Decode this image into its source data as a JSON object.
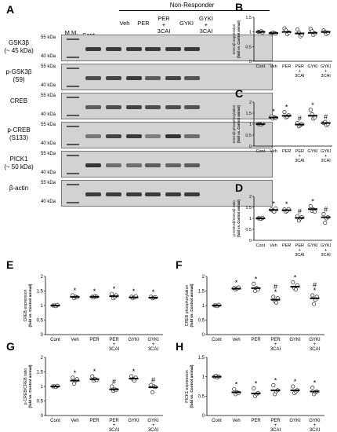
{
  "panelA": {
    "letter": "A",
    "group_header": "Non-Responder",
    "lanes": [
      "M.M.",
      "Cont",
      "Veh",
      "PER",
      "PER\n+\n3CAI",
      "GYKI",
      "GYKI\n+\n3CAI"
    ],
    "lane_lines": {
      "mm": "M.M.",
      "cont": "Cont",
      "veh": "Veh",
      "per": "PER",
      "per3cai_1": "PER",
      "per3cai_2": "+",
      "per3cai_3": "3CAI",
      "gyki": "GYKI",
      "gyki3cai_1": "GYKI",
      "gyki3cai_2": "+",
      "gyki3cai_3": "3CAI"
    },
    "blots": [
      {
        "label_1": "GSK3β",
        "label_2": "(~ 45 kDa)",
        "upper": "55 kDa",
        "lower": "40 kDa",
        "intensity": [
          0.9,
          0.9,
          0.9,
          0.9,
          0.9,
          0.9
        ]
      },
      {
        "label_1": "p-GSK3β",
        "label_2": "(S9)",
        "upper": "55 kDa",
        "lower": "40 kDa",
        "intensity": [
          0.8,
          0.85,
          0.9,
          0.7,
          0.85,
          0.75
        ]
      },
      {
        "label_1": "CREB",
        "label_2": "",
        "upper": "55 kDa",
        "lower": "40 kDa",
        "intensity": [
          0.7,
          0.8,
          0.85,
          0.8,
          0.8,
          0.75
        ]
      },
      {
        "label_1": "p-CREB",
        "label_2": "(S133)",
        "upper": "55 kDa",
        "lower": "40 kDa",
        "intensity": [
          0.55,
          0.85,
          0.9,
          0.5,
          0.95,
          0.6
        ]
      },
      {
        "label_1": "PICK1",
        "label_2": "(~ 50 kDa)",
        "upper": "55 kDa",
        "lower": "40 kDa",
        "intensity": [
          0.95,
          0.6,
          0.6,
          0.7,
          0.65,
          0.7
        ]
      },
      {
        "label_1": "β-actin",
        "label_2": "",
        "upper": "55 kDa",
        "lower": "40 kDa",
        "intensity": [
          0.9,
          0.9,
          0.9,
          0.9,
          0.9,
          0.9
        ]
      }
    ]
  },
  "chart_data": [
    {
      "letter": "B",
      "type": "scatter",
      "ylabel_1": "GSK3β expression",
      "ylabel_2": "(fold vs. Control animal)",
      "ylim": [
        0,
        1.5
      ],
      "yticks": [
        0,
        0.5,
        1,
        1.5
      ],
      "categories": [
        "Cont",
        "Veh",
        "PER",
        "PER\n+\n3CAI",
        "GYKI",
        "GYKI\n+\n3CAI"
      ],
      "means": [
        1.0,
        0.96,
        1.0,
        0.95,
        0.97,
        1.0
      ],
      "points": [
        [
          1.0,
          1.0,
          1.02,
          0.98
        ],
        [
          0.95,
          0.97,
          0.96,
          0.94
        ],
        [
          1.12,
          1.05,
          0.92,
          0.98
        ],
        [
          1.08,
          0.97,
          0.85,
          0.9
        ],
        [
          1.1,
          1.02,
          0.9,
          0.95
        ],
        [
          1.05,
          1.0,
          0.92,
          0.97
        ]
      ],
      "marks": [
        "",
        "",
        "",
        "",
        "",
        ""
      ]
    },
    {
      "letter": "C",
      "type": "scatter",
      "ylabel_1": "GSK3β phosphorylation",
      "ylabel_2": "(fold vs. Control animal)",
      "ylim": [
        0,
        2
      ],
      "yticks": [
        0,
        0.5,
        1,
        1.5,
        2
      ],
      "categories": [
        "Cont",
        "Veh",
        "PER",
        "PER\n+\n3CAI",
        "GYKI",
        "GYKI\n+\n3CAI"
      ],
      "means": [
        1.0,
        1.3,
        1.38,
        0.98,
        1.38,
        1.05
      ],
      "points": [
        [
          1.0,
          1.0,
          0.98,
          1.02
        ],
        [
          1.35,
          1.25,
          1.3,
          1.28
        ],
        [
          1.55,
          1.3,
          1.35,
          1.4
        ],
        [
          1.05,
          0.9,
          0.95,
          1.0
        ],
        [
          1.65,
          1.45,
          1.25,
          1.3
        ],
        [
          1.05,
          1.1,
          0.95,
          1.0
        ]
      ],
      "marks": [
        "",
        "*",
        "*",
        "#",
        "*",
        "#"
      ]
    },
    {
      "letter": "D",
      "type": "scatter",
      "ylabel_1": "p-GSK3β/GSK3β ratio",
      "ylabel_2": "(fold vs. Control animal)",
      "ylim": [
        0,
        2
      ],
      "yticks": [
        0,
        0.5,
        1,
        1.5,
        2
      ],
      "categories": [
        "Cont",
        "Veh",
        "PER",
        "PER\n+\n3CAI",
        "GYKI",
        "GYKI\n+\n3CAI"
      ],
      "means": [
        1.0,
        1.38,
        1.37,
        1.02,
        1.42,
        1.05
      ],
      "points": [
        [
          1.0,
          1.0,
          0.98,
          1.02
        ],
        [
          1.4,
          1.35,
          1.3,
          1.45
        ],
        [
          1.4,
          1.3,
          1.35,
          1.42
        ],
        [
          1.1,
          0.9,
          1.0,
          1.05
        ],
        [
          1.55,
          1.35,
          1.4,
          1.3
        ],
        [
          1.2,
          0.8,
          1.0,
          1.05
        ]
      ],
      "marks": [
        "",
        "*",
        "*",
        "#",
        "*",
        "#"
      ]
    },
    {
      "letter": "E",
      "type": "scatter",
      "ylabel_1": "CREB expression",
      "ylabel_2": "(fold vs. Control animal)",
      "ylim": [
        0,
        2
      ],
      "yticks": [
        0,
        0.5,
        1,
        1.5,
        2
      ],
      "categories": [
        "Cont",
        "Veh",
        "PER",
        "PER\n+\n3CAI",
        "GYKI",
        "GYKI\n+\n3CAI"
      ],
      "means": [
        1.0,
        1.3,
        1.3,
        1.32,
        1.28,
        1.27
      ],
      "points": [
        [
          1.0,
          1.0,
          0.98,
          1.02
        ],
        [
          1.35,
          1.25,
          1.3,
          1.28
        ],
        [
          1.3,
          1.28,
          1.32,
          1.3
        ],
        [
          1.4,
          1.25,
          1.3,
          1.35
        ],
        [
          1.3,
          1.25,
          1.28,
          1.32
        ],
        [
          1.3,
          1.25,
          1.27,
          1.28
        ]
      ],
      "marks": [
        "",
        "*",
        "*",
        "*",
        "*",
        "*"
      ]
    },
    {
      "letter": "F",
      "type": "scatter",
      "ylabel_1": "CREB phosphorylation",
      "ylabel_2": "(fold vs. Control animal)",
      "ylim": [
        0,
        2
      ],
      "yticks": [
        0,
        0.5,
        1,
        1.5,
        2
      ],
      "categories": [
        "Cont",
        "Veh",
        "PER",
        "PER\n+\n3CAI",
        "GYKI",
        "GYKI\n+\n3CAI"
      ],
      "means": [
        1.0,
        1.58,
        1.6,
        1.2,
        1.65,
        1.25
      ],
      "points": [
        [
          1.0,
          1.0,
          0.98,
          1.02
        ],
        [
          1.6,
          1.55,
          1.58,
          1.62
        ],
        [
          1.75,
          1.5,
          1.6,
          1.55
        ],
        [
          1.3,
          1.15,
          1.1,
          1.25
        ],
        [
          1.8,
          1.6,
          1.55,
          1.7
        ],
        [
          1.35,
          1.05,
          1.2,
          1.3
        ]
      ],
      "marks": [
        "",
        "*",
        "*",
        "#\n*",
        "*",
        "#\n*"
      ]
    },
    {
      "letter": "G",
      "type": "scatter",
      "ylabel_1": "p-CREB/CREB ratio",
      "ylabel_2": "(fold vs. Control animal)",
      "ylim": [
        0,
        2
      ],
      "yticks": [
        0,
        0.5,
        1,
        1.5,
        2
      ],
      "categories": [
        "Cont",
        "Veh",
        "PER",
        "PER\n+\n3CAI",
        "GYKI",
        "GYKI\n+\n3CAI"
      ],
      "means": [
        1.0,
        1.2,
        1.25,
        0.9,
        1.27,
        0.97
      ],
      "points": [
        [
          1.0,
          1.0,
          0.98,
          1.02
        ],
        [
          1.3,
          1.1,
          1.2,
          1.25
        ],
        [
          1.35,
          1.2,
          1.25,
          1.22
        ],
        [
          1.0,
          0.85,
          0.9,
          0.88
        ],
        [
          1.35,
          1.25,
          1.2,
          1.3
        ],
        [
          1.05,
          0.8,
          1.0,
          0.98
        ]
      ],
      "marks": [
        "",
        "*",
        "*",
        "#",
        "*",
        "#"
      ]
    },
    {
      "letter": "H",
      "type": "scatter",
      "ylabel_1": "PICK1 expression",
      "ylabel_2": "(fold vs. Control animal)",
      "ylim": [
        0,
        1.5
      ],
      "yticks": [
        0,
        0.5,
        1,
        1.5
      ],
      "categories": [
        "Cont",
        "Veh",
        "PER",
        "PER\n+\n3CAI",
        "GYKI",
        "GYKI\n+\n3CAI"
      ],
      "means": [
        1.0,
        0.6,
        0.57,
        0.65,
        0.65,
        0.62
      ],
      "points": [
        [
          1.0,
          1.02,
          0.98,
          1.0
        ],
        [
          0.68,
          0.55,
          0.6,
          0.58
        ],
        [
          0.7,
          0.5,
          0.55,
          0.58
        ],
        [
          0.78,
          0.55,
          0.62,
          0.65
        ],
        [
          0.75,
          0.58,
          0.62,
          0.65
        ],
        [
          0.72,
          0.55,
          0.6,
          0.62
        ]
      ],
      "marks": [
        "",
        "*",
        "*",
        "*",
        "*",
        "*"
      ]
    }
  ]
}
